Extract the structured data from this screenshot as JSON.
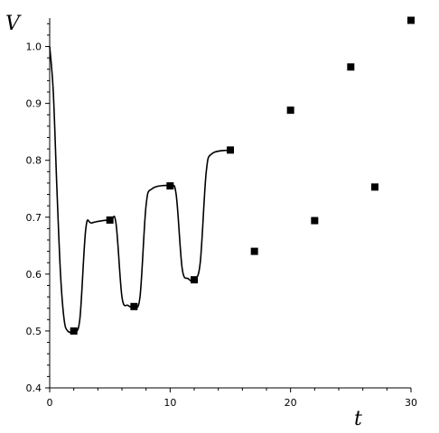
{
  "chart_data": {
    "type": "line",
    "xlabel": "t",
    "ylabel": "V",
    "xlim": [
      0,
      30
    ],
    "ylim": [
      0.4,
      1.05
    ],
    "x_ticks": [
      0,
      10,
      20,
      30
    ],
    "y_ticks": [
      0.4,
      0.5,
      0.6,
      0.7,
      0.8,
      0.9,
      1.0
    ],
    "x_tick_labels": [
      "0",
      "10",
      "20",
      "30"
    ],
    "y_tick_labels": [
      "0.4",
      "0.5",
      "0.6",
      "0.7",
      "0.8",
      "0.9",
      "1.0"
    ],
    "grid": false,
    "legend": "none",
    "series": [
      {
        "style": "line",
        "color": "#000000",
        "points": [
          [
            0,
            1.0
          ],
          [
            0.3,
            0.92
          ],
          [
            0.6,
            0.75
          ],
          [
            0.9,
            0.6
          ],
          [
            1.2,
            0.52
          ],
          [
            1.5,
            0.5
          ],
          [
            2,
            0.5
          ],
          [
            2.5,
            0.52
          ],
          [
            3,
            0.68
          ],
          [
            3.5,
            0.69
          ],
          [
            5,
            0.695
          ],
          [
            5.5,
            0.69
          ],
          [
            6,
            0.56
          ],
          [
            6.5,
            0.545
          ],
          [
            7,
            0.543
          ],
          [
            7.5,
            0.56
          ],
          [
            8,
            0.72
          ],
          [
            8.5,
            0.75
          ],
          [
            10,
            0.755
          ],
          [
            10.5,
            0.74
          ],
          [
            11,
            0.61
          ],
          [
            11.5,
            0.592
          ],
          [
            12,
            0.59
          ],
          [
            12.5,
            0.62
          ],
          [
            13,
            0.78
          ],
          [
            13.5,
            0.812
          ],
          [
            15,
            0.818
          ]
        ]
      },
      {
        "style": "markers",
        "marker": "square",
        "color": "#000000",
        "points": [
          [
            2,
            0.5
          ],
          [
            5,
            0.695
          ],
          [
            7,
            0.543
          ],
          [
            10,
            0.755
          ],
          [
            12,
            0.59
          ],
          [
            15,
            0.818
          ],
          [
            17,
            0.64
          ],
          [
            20,
            0.888
          ],
          [
            22,
            0.694
          ],
          [
            25,
            0.964
          ],
          [
            27,
            0.753
          ],
          [
            30,
            1.046
          ]
        ]
      }
    ]
  }
}
